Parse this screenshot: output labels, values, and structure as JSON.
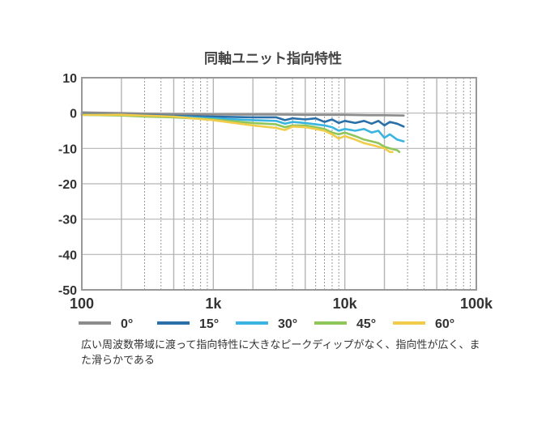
{
  "chart_data": {
    "type": "line",
    "title": "同軸ユニット指向特性",
    "xscale": "log",
    "xlim": [
      100,
      100000
    ],
    "ylim": [
      -50,
      10
    ],
    "grid": true,
    "legend_position": "bottom",
    "x_ticks": [
      {
        "value": 100,
        "label": "100"
      },
      {
        "value": 1000,
        "label": "1k"
      },
      {
        "value": 10000,
        "label": "10k"
      },
      {
        "value": 100000,
        "label": "100k"
      }
    ],
    "y_ticks": [
      {
        "value": 10,
        "label": "10"
      },
      {
        "value": 0,
        "label": "0"
      },
      {
        "value": -10,
        "label": "-10"
      },
      {
        "value": -20,
        "label": "-20"
      },
      {
        "value": -30,
        "label": "-30"
      },
      {
        "value": -40,
        "label": "-40"
      },
      {
        "value": -50,
        "label": "-50"
      }
    ],
    "series": [
      {
        "name": "0°",
        "color": "#8c8c8c",
        "points": [
          [
            100,
            0.2
          ],
          [
            200,
            0
          ],
          [
            500,
            -0.3
          ],
          [
            1000,
            -0.4
          ],
          [
            2000,
            -0.4
          ],
          [
            3000,
            -0.4
          ],
          [
            5000,
            -0.5
          ],
          [
            8000,
            -0.5
          ],
          [
            10000,
            -0.5
          ],
          [
            15000,
            -0.6
          ],
          [
            20000,
            -0.6
          ],
          [
            28000,
            -0.7
          ]
        ]
      },
      {
        "name": "15°",
        "color": "#2a6fa8",
        "points": [
          [
            100,
            -0.3
          ],
          [
            200,
            -0.5
          ],
          [
            500,
            -0.8
          ],
          [
            1000,
            -1
          ],
          [
            2000,
            -1.2
          ],
          [
            3000,
            -1.2
          ],
          [
            3500,
            -2
          ],
          [
            4000,
            -1.5
          ],
          [
            5000,
            -1.8
          ],
          [
            6000,
            -1.5
          ],
          [
            7000,
            -2.5
          ],
          [
            8000,
            -1.8
          ],
          [
            9000,
            -2.8
          ],
          [
            10000,
            -2.2
          ],
          [
            12000,
            -2.8
          ],
          [
            14000,
            -2.2
          ],
          [
            16000,
            -3
          ],
          [
            18000,
            -2.2
          ],
          [
            20000,
            -3.5
          ],
          [
            22000,
            -2.5
          ],
          [
            25000,
            -3
          ],
          [
            28000,
            -3.8
          ]
        ]
      },
      {
        "name": "30°",
        "color": "#3ab4e0",
        "points": [
          [
            100,
            -0.5
          ],
          [
            200,
            -0.6
          ],
          [
            500,
            -1
          ],
          [
            1000,
            -1.5
          ],
          [
            2000,
            -2
          ],
          [
            3000,
            -2.2
          ],
          [
            3500,
            -3
          ],
          [
            4000,
            -2.5
          ],
          [
            5000,
            -2.8
          ],
          [
            6000,
            -3.2
          ],
          [
            7000,
            -3.5
          ],
          [
            8000,
            -4
          ],
          [
            9000,
            -5
          ],
          [
            10000,
            -4.5
          ],
          [
            12000,
            -5
          ],
          [
            14000,
            -4.5
          ],
          [
            16000,
            -5.5
          ],
          [
            18000,
            -5
          ],
          [
            20000,
            -7
          ],
          [
            22000,
            -6
          ],
          [
            25000,
            -7.5
          ],
          [
            28000,
            -8
          ]
        ]
      },
      {
        "name": "45°",
        "color": "#8fc65a",
        "points": [
          [
            100,
            -0.5
          ],
          [
            200,
            -0.7
          ],
          [
            300,
            -1
          ],
          [
            500,
            -1.2
          ],
          [
            1000,
            -1.8
          ],
          [
            2000,
            -2.8
          ],
          [
            3000,
            -3.2
          ],
          [
            3500,
            -4
          ],
          [
            4000,
            -3.5
          ],
          [
            5000,
            -3.5
          ],
          [
            6000,
            -4
          ],
          [
            7000,
            -4.5
          ],
          [
            8000,
            -5.5
          ],
          [
            9000,
            -6
          ],
          [
            10000,
            -5.5
          ],
          [
            12000,
            -6.5
          ],
          [
            14000,
            -7.5
          ],
          [
            16000,
            -8
          ],
          [
            18000,
            -8.5
          ],
          [
            20000,
            -9.5
          ],
          [
            22000,
            -10
          ],
          [
            25000,
            -10.5
          ],
          [
            26000,
            -11
          ]
        ]
      },
      {
        "name": "60°",
        "color": "#f0cc4a",
        "points": [
          [
            100,
            -0.5
          ],
          [
            200,
            -0.5
          ],
          [
            500,
            -1
          ],
          [
            1000,
            -2
          ],
          [
            2000,
            -3.5
          ],
          [
            3000,
            -4.2
          ],
          [
            3500,
            -4.8
          ],
          [
            4000,
            -3.8
          ],
          [
            5000,
            -4
          ],
          [
            6000,
            -4.5
          ],
          [
            7000,
            -5
          ],
          [
            8000,
            -6
          ],
          [
            9000,
            -7.2
          ],
          [
            10000,
            -6.5
          ],
          [
            12000,
            -7.5
          ],
          [
            14000,
            -8.5
          ],
          [
            16000,
            -9
          ],
          [
            18000,
            -9.5
          ],
          [
            20000,
            -10
          ],
          [
            22000,
            -11
          ],
          [
            23000,
            -11
          ]
        ]
      }
    ]
  },
  "caption": "広い周波数帯域に渡って指向特性に大きなピークディップがなく、指向性が広く、また滑らかである"
}
